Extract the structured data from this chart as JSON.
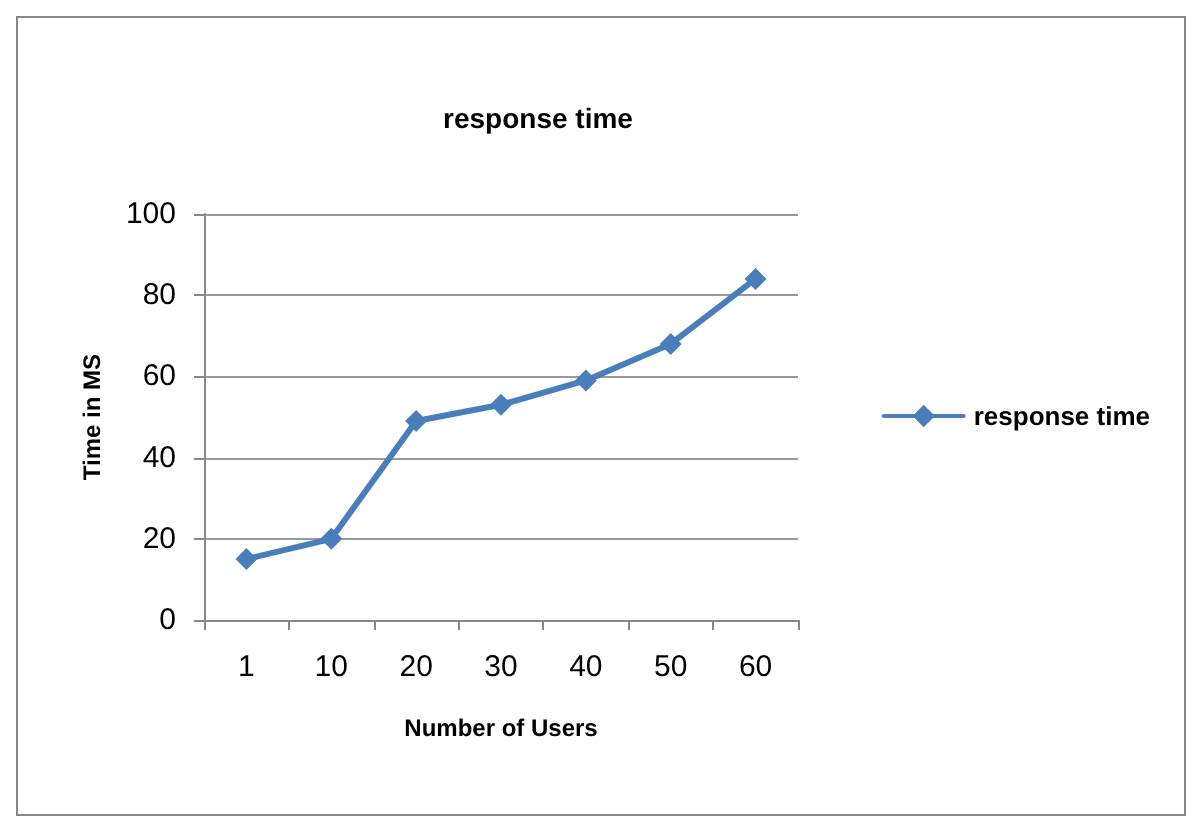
{
  "chart_data": {
    "type": "line",
    "title": "response time",
    "xlabel": "Number of Users",
    "ylabel": "Time in MS",
    "categories": [
      "1",
      "10",
      "20",
      "30",
      "40",
      "50",
      "60"
    ],
    "series": [
      {
        "name": "response time",
        "color": "#4a7ebb",
        "values": [
          15,
          20,
          49,
          53,
          59,
          68,
          84
        ]
      }
    ],
    "ylim": [
      0,
      100
    ],
    "yticks": [
      0,
      20,
      40,
      60,
      80,
      100
    ],
    "grid": "y",
    "legend": "right",
    "marker": "diamond",
    "line_style": "solid"
  }
}
